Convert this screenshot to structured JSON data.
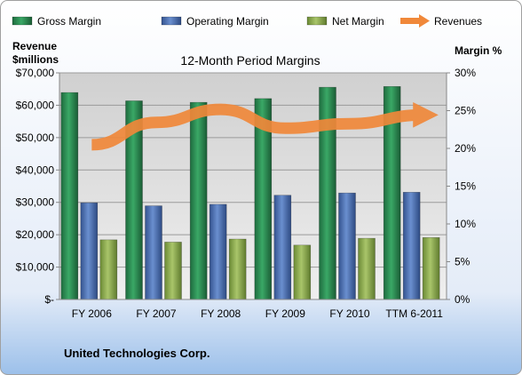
{
  "chart_data": {
    "type": "bar",
    "title": "12-Month Period Margins",
    "company": "United Technologies Corp.",
    "categories": [
      "FY 2006",
      "FY 2007",
      "FY 2008",
      "FY 2009",
      "FY 2010",
      "TTM 6-2011"
    ],
    "left_axis": {
      "label_line1": "Revenue",
      "label_line2": "$millions",
      "ylim": [
        0,
        70000
      ],
      "ticks": [
        0,
        10000,
        20000,
        30000,
        40000,
        50000,
        60000,
        70000
      ],
      "tick_labels": [
        "$-",
        "$10,000",
        "$20,000",
        "$30,000",
        "$40,000",
        "$50,000",
        "$60,000",
        "$70,000"
      ]
    },
    "right_axis": {
      "label": "Margin %",
      "ylim": [
        0,
        30
      ],
      "ticks": [
        0,
        5,
        10,
        15,
        20,
        25,
        30
      ],
      "tick_labels": [
        "0%",
        "5%",
        "10%",
        "15%",
        "20%",
        "25%",
        "30%"
      ]
    },
    "series": [
      {
        "name": "Gross Margin",
        "kind": "bar",
        "axis": "right",
        "color": "#2e8b57",
        "values": [
          27.4,
          26.3,
          26.1,
          26.6,
          28.1,
          28.2
        ]
      },
      {
        "name": "Operating Margin",
        "kind": "bar",
        "axis": "right",
        "color": "#4a6fb5",
        "values": [
          12.8,
          12.4,
          12.6,
          13.8,
          14.1,
          14.2
        ]
      },
      {
        "name": "Net Margin",
        "kind": "bar",
        "axis": "right",
        "color": "#8fb04f",
        "values": [
          7.9,
          7.6,
          8.0,
          7.2,
          8.1,
          8.2
        ]
      },
      {
        "name": "Revenues",
        "kind": "line",
        "axis": "left",
        "color": "#f0883a",
        "values": [
          47800,
          54700,
          58700,
          52900,
          54300,
          57000
        ]
      }
    ],
    "grid": true,
    "legend": "top"
  }
}
